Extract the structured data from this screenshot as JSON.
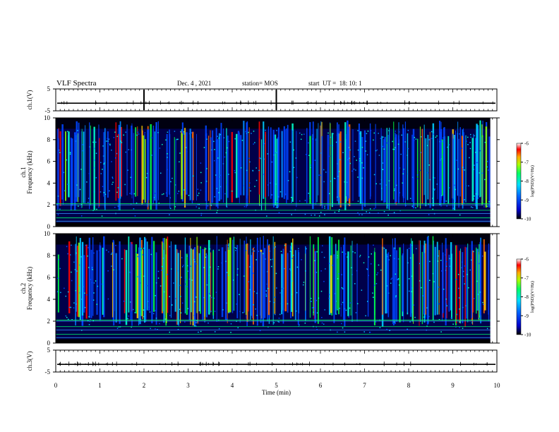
{
  "header": {
    "title": "VLF Spectra",
    "date": "Dec. 4 , 2021",
    "station": "station= MOS",
    "start": "start  UT =  18: 10: 1"
  },
  "chart_data": [
    {
      "type": "line",
      "panel": "ch1-voltage",
      "ylabel": "ch.1(V)",
      "xlim": [
        0,
        10
      ],
      "ylim": [
        -5,
        5
      ],
      "yticks": [
        "5",
        "-5"
      ],
      "baseline_value": -1.5,
      "markers_x": [
        2,
        5
      ]
    },
    {
      "type": "heatmap",
      "panel": "ch1-spectrogram",
      "ylabel": "ch.1\nFrequency (kHz)",
      "ylim": [
        0,
        10
      ],
      "yticks": [
        "0",
        "2",
        "4",
        "6",
        "8",
        "10"
      ],
      "xlim": [
        0,
        10
      ],
      "data_end_min": 9.85,
      "colorbar": {
        "label": "log(PSD)(V²/Hz)",
        "range": [
          -10,
          -6
        ],
        "ticks": [
          "-6",
          "-7",
          "-8",
          "-9",
          "-10"
        ]
      }
    },
    {
      "type": "heatmap",
      "panel": "ch2-spectrogram",
      "ylabel": "ch.2\nFrequency (kHz)",
      "ylim": [
        0,
        10
      ],
      "yticks": [
        "0",
        "2",
        "4",
        "6",
        "8",
        "10"
      ],
      "xlim": [
        0,
        10
      ],
      "data_end_min": 9.85,
      "colorbar": {
        "label": "log(PSD)(V²/Hz)",
        "range": [
          -10,
          -6
        ],
        "ticks": [
          "-6",
          "-7",
          "-8",
          "-9",
          "-10"
        ]
      }
    },
    {
      "type": "line",
      "panel": "ch3-voltage",
      "ylabel": "ch.3(V)",
      "xlim": [
        0,
        10
      ],
      "ylim": [
        -5,
        5
      ],
      "yticks": [
        "5",
        "-5"
      ],
      "baseline_value": -1.5,
      "xlabel": "Time (min)",
      "xticks": [
        "0",
        "1",
        "2",
        "3",
        "4",
        "5",
        "6",
        "7",
        "8",
        "9",
        "10"
      ]
    }
  ]
}
